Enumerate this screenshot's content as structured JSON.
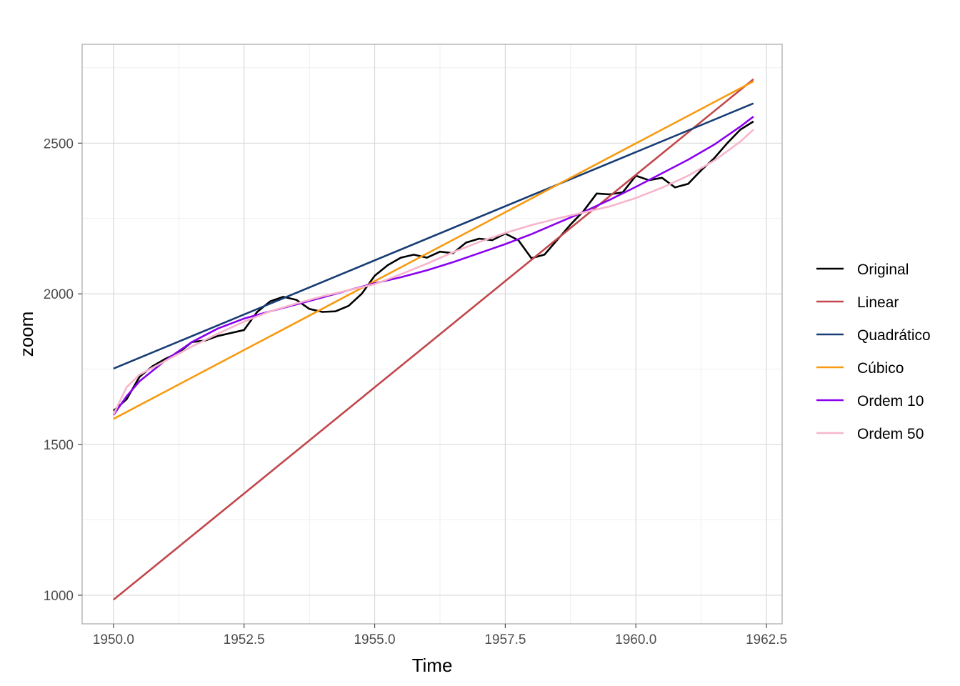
{
  "chart_data": {
    "type": "line",
    "xlabel": "Time",
    "ylabel": "zoom",
    "xlim": [
      1949.4,
      1962.8
    ],
    "ylim": [
      905,
      2828
    ],
    "x_ticks": [
      1950.0,
      1952.5,
      1955.0,
      1957.5,
      1960.0,
      1962.5
    ],
    "x_tick_labels": [
      "1950.0",
      "1952.5",
      "1955.0",
      "1957.5",
      "1960.0",
      "1962.5"
    ],
    "y_ticks": [
      1000,
      1500,
      2000,
      2500
    ],
    "y_tick_labels": [
      "1000",
      "1500",
      "2000",
      "2500"
    ],
    "x_minor_ticks": [
      1951.25,
      1953.75,
      1956.25,
      1958.75,
      1961.25
    ],
    "y_minor_ticks": [
      1250,
      1750,
      2250,
      2750
    ],
    "grid": true,
    "legend_position": "right",
    "series": [
      {
        "name": "Original",
        "color": "#000000",
        "x": [
          1950.0,
          1950.25,
          1950.5,
          1950.75,
          1951.0,
          1951.25,
          1951.5,
          1951.75,
          1952.0,
          1952.25,
          1952.5,
          1952.75,
          1953.0,
          1953.25,
          1953.5,
          1953.75,
          1954.0,
          1954.25,
          1954.5,
          1954.75,
          1955.0,
          1955.25,
          1955.5,
          1955.75,
          1956.0,
          1956.25,
          1956.5,
          1956.75,
          1957.0,
          1957.25,
          1957.5,
          1957.75,
          1958.0,
          1958.25,
          1958.5,
          1958.75,
          1959.0,
          1959.25,
          1959.5,
          1959.75,
          1960.0,
          1960.25,
          1960.5,
          1960.75,
          1961.0,
          1961.25,
          1961.5,
          1961.75,
          1962.0,
          1962.25
        ],
        "values": [
          1612,
          1650,
          1725,
          1760,
          1785,
          1805,
          1840,
          1845,
          1860,
          1870,
          1880,
          1940,
          1975,
          1990,
          1980,
          1950,
          1940,
          1942,
          1960,
          2000,
          2060,
          2095,
          2120,
          2130,
          2120,
          2140,
          2135,
          2170,
          2183,
          2178,
          2200,
          2178,
          2118,
          2130,
          2180,
          2230,
          2275,
          2333,
          2330,
          2337,
          2392,
          2377,
          2385,
          2353,
          2365,
          2410,
          2450,
          2500,
          2545,
          2572
        ]
      },
      {
        "name": "Linear",
        "color": "#c1474b",
        "x": [
          1950.0,
          1962.25
        ],
        "values": [
          985,
          2712
        ]
      },
      {
        "name": "Quadrático",
        "color": "#183e75",
        "x": [
          1950.0,
          1962.25
        ],
        "values": [
          1752,
          2632
        ]
      },
      {
        "name": "Cúbico",
        "color": "#f89a10",
        "x": [
          1950.0,
          1962.25
        ],
        "values": [
          1585,
          2705
        ]
      },
      {
        "name": "Ordem 10",
        "color": "#8a00f0",
        "x": [
          1950.0,
          1950.25,
          1950.5,
          1951.0,
          1951.5,
          1952.0,
          1952.5,
          1953.0,
          1953.5,
          1954.0,
          1954.5,
          1955.0,
          1955.5,
          1956.0,
          1956.5,
          1957.0,
          1957.5,
          1958.0,
          1958.5,
          1959.0,
          1959.5,
          1960.0,
          1960.5,
          1961.0,
          1961.5,
          1962.0,
          1962.25
        ],
        "values": [
          1598,
          1660,
          1710,
          1780,
          1840,
          1885,
          1918,
          1942,
          1965,
          1988,
          2012,
          2035,
          2055,
          2078,
          2105,
          2135,
          2165,
          2198,
          2235,
          2272,
          2312,
          2355,
          2400,
          2445,
          2495,
          2555,
          2588
        ]
      },
      {
        "name": "Ordem 50",
        "color": "#f7b5cc",
        "x": [
          1950.0,
          1950.25,
          1950.5,
          1951.0,
          1951.5,
          1952.0,
          1952.5,
          1953.0,
          1953.5,
          1954.0,
          1954.5,
          1955.0,
          1955.5,
          1956.0,
          1956.5,
          1957.0,
          1957.5,
          1958.0,
          1958.5,
          1959.0,
          1959.5,
          1960.0,
          1960.5,
          1961.0,
          1961.5,
          1962.0,
          1962.25
        ],
        "values": [
          1600,
          1690,
          1732,
          1778,
          1825,
          1868,
          1908,
          1942,
          1968,
          1992,
          2012,
          2032,
          2065,
          2100,
          2138,
          2172,
          2202,
          2228,
          2250,
          2270,
          2290,
          2318,
          2352,
          2392,
          2442,
          2505,
          2545
        ]
      }
    ]
  }
}
